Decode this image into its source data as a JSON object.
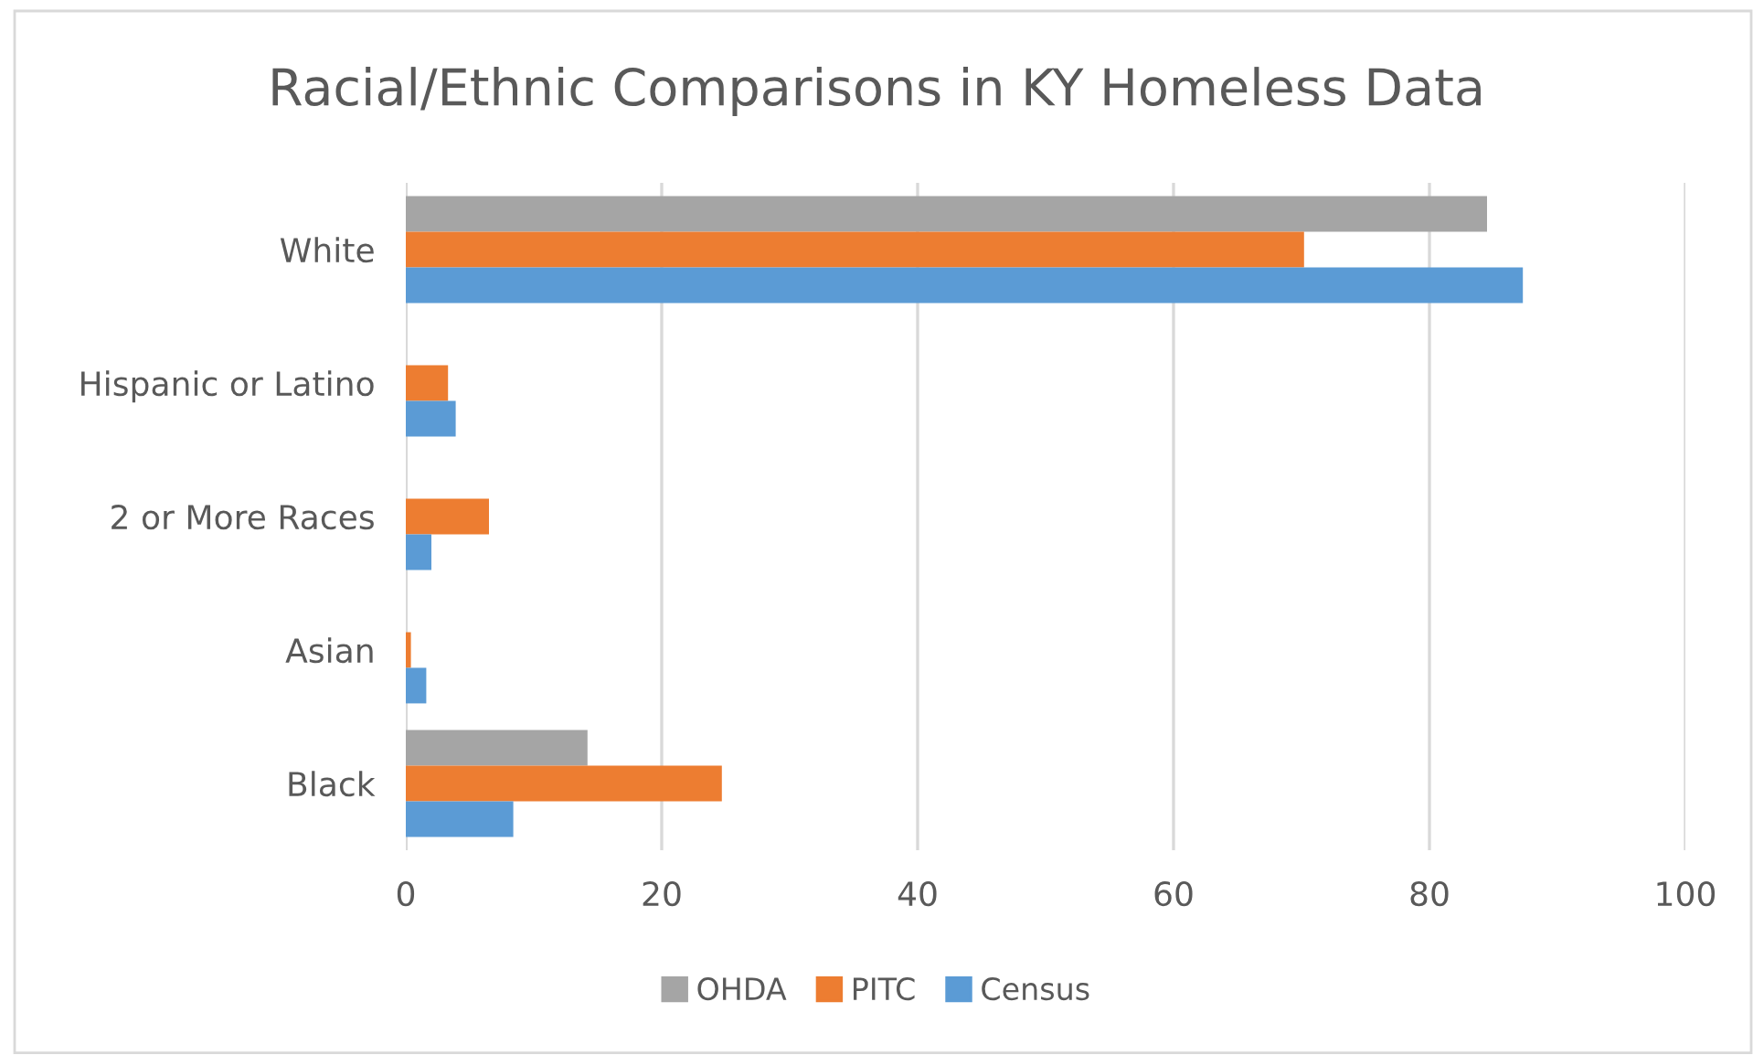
{
  "chart_data": {
    "type": "bar",
    "orientation": "horizontal",
    "title": "Racial/Ethnic Comparisons in KY Homeless Data",
    "categories": [
      "White",
      "Hispanic or Latino",
      "2 or More Races",
      "Asian",
      "Black"
    ],
    "series": [
      {
        "name": "OHDA",
        "color": "#a5a5a5",
        "values": [
          84.5,
          null,
          null,
          null,
          14.2
        ]
      },
      {
        "name": "PITC",
        "color": "#ed7d31",
        "values": [
          70.2,
          3.3,
          6.5,
          0.4,
          24.7
        ]
      },
      {
        "name": "Census",
        "color": "#5b9bd5",
        "values": [
          87.3,
          3.9,
          2.0,
          1.6,
          8.4
        ]
      }
    ],
    "xlim": [
      0,
      100
    ],
    "xticks": [
      0,
      20,
      40,
      60,
      80,
      100
    ],
    "grid": "x",
    "legend": "bottom"
  }
}
